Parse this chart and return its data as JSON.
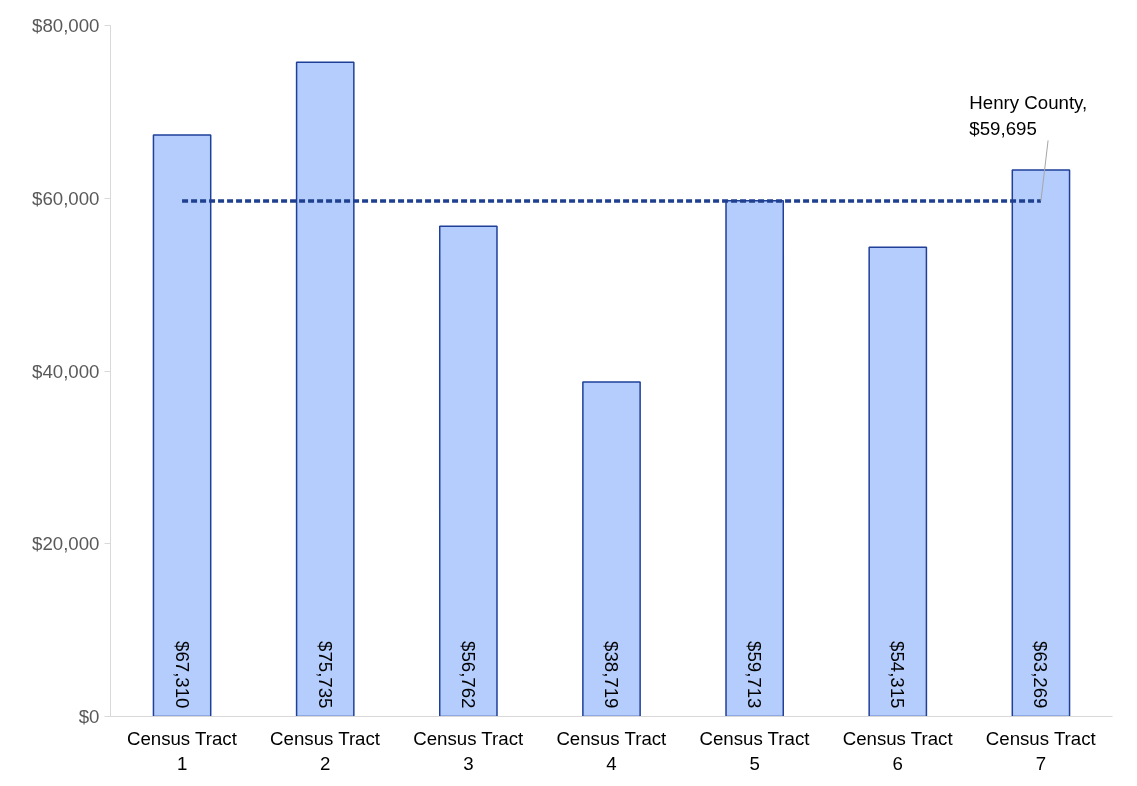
{
  "chart_data": {
    "type": "bar",
    "categories": [
      "Census Tract\n1",
      "Census Tract\n2",
      "Census Tract\n3",
      "Census Tract\n4",
      "Census Tract\n5",
      "Census Tract\n6",
      "Census Tract\n7"
    ],
    "values": [
      67310,
      75735,
      56762,
      38719,
      59713,
      54315,
      63269
    ],
    "value_labels": [
      "$67,310",
      "$75,735",
      "$56,762",
      "$38,719",
      "$59,713",
      "$54,315",
      "$63,269"
    ],
    "color": "#b4cdfc",
    "ylim": [
      0,
      80000
    ],
    "yticks": [
      {
        "value": 0,
        "label": "$0"
      },
      {
        "value": 20000,
        "label": "$20,000"
      },
      {
        "value": 40000,
        "label": "$40,000"
      },
      {
        "value": 60000,
        "label": "$60,000"
      },
      {
        "value": 80000,
        "label": "$80,000"
      }
    ],
    "ref_lines": [
      {
        "axis": "y",
        "value": 59695,
        "label": "Henry County,\n$59,695",
        "color": "#1f3f8f",
        "line_style": "dashed"
      }
    ],
    "grid": false
  }
}
